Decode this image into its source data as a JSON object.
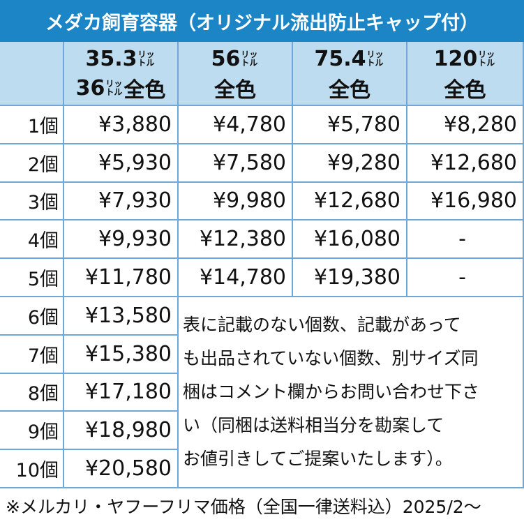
{
  "title": "メダカ飼育容器（オリジナル流出防止キャップ付）",
  "columns": [
    {
      "line1": {
        "size": "35.3",
        "unit": [
          "リッ",
          "トル"
        ]
      },
      "line2": {
        "size": "36",
        "unit": [
          "リッ",
          "トル"
        ],
        "text": "全色"
      }
    },
    {
      "line1": {
        "size": "56",
        "unit": [
          "リッ",
          "トル"
        ]
      },
      "line2": {
        "text": "全色"
      }
    },
    {
      "line1": {
        "size": "75.4",
        "unit": [
          "リッ",
          "トル"
        ]
      },
      "line2": {
        "text": "全色"
      }
    },
    {
      "line1": {
        "size": "120",
        "unit": [
          "リッ",
          "トル"
        ]
      },
      "line2": {
        "text": "全色"
      }
    }
  ],
  "rows": [
    {
      "label": "1個",
      "prices": [
        "¥3,880",
        "¥4,780",
        "¥5,780",
        "¥8,280"
      ]
    },
    {
      "label": "2個",
      "prices": [
        "¥5,930",
        "¥7,580",
        "¥9,280",
        "¥12,680"
      ]
    },
    {
      "label": "3個",
      "prices": [
        "¥7,930",
        "¥9,980",
        "¥12,680",
        "¥16,980"
      ]
    },
    {
      "label": "4個",
      "prices": [
        "¥9,930",
        "¥12,380",
        "¥16,080",
        "-"
      ]
    },
    {
      "label": "5個",
      "prices": [
        "¥11,780",
        "¥14,780",
        "¥19,380",
        "-"
      ]
    },
    {
      "label": "6個",
      "prices": [
        "¥13,580"
      ]
    },
    {
      "label": "7個",
      "prices": [
        "¥15,380"
      ]
    },
    {
      "label": "8個",
      "prices": [
        "¥17,180"
      ]
    },
    {
      "label": "9個",
      "prices": [
        "¥18,980"
      ]
    },
    {
      "label": "10個",
      "prices": [
        "¥20,580"
      ]
    }
  ],
  "note": [
    "表に記載のない個数、記載があって",
    "も出品されていない個数、別サイズ同",
    "梱はコメント欄からお問い合わせ下さ",
    "い（同梱は送料相当分を勘案して",
    "お値引きしてご提案いたします）。"
  ],
  "footer": "※メルカリ・ヤフーフリマ価格（全国一律送料込）2025/2～"
}
